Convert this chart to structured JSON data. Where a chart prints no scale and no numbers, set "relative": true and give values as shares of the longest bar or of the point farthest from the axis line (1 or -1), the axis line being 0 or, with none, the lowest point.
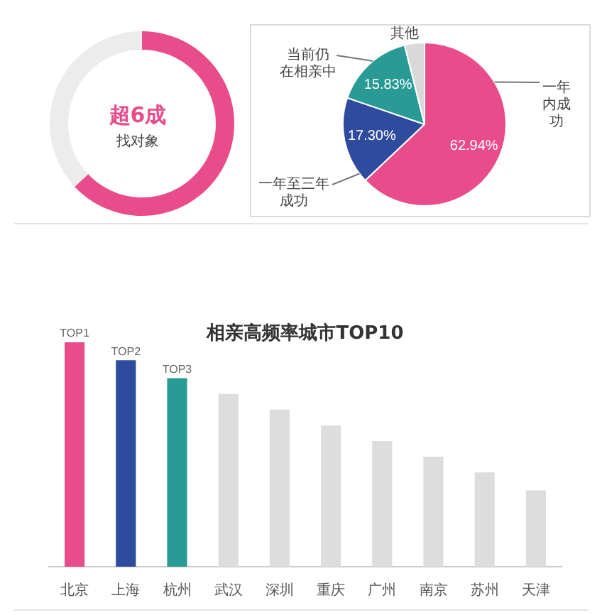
{
  "chart_data": [
    {
      "type": "donut",
      "categories": [
        null,
        null
      ],
      "values": [
        63,
        37
      ],
      "colors": [
        "#e94c8b",
        "#ececec"
      ],
      "annotations": [
        "超6成",
        "找对象"
      ]
    },
    {
      "type": "pie",
      "categories": [
        "一年内成功",
        "一年至三年成功",
        "当前仍在相亲中",
        "其他"
      ],
      "values": [
        62.94,
        17.3,
        15.83,
        3.93
      ],
      "colors": [
        "#e94c8b",
        "#2f4b9e",
        "#2a9a94",
        "#d9d9d9"
      ],
      "value_labels": [
        "62.94%",
        "17.30%",
        "15.83%",
        null
      ]
    },
    {
      "type": "bar",
      "title": "相亲高频率城市TOP10",
      "categories": [
        "北京",
        "上海",
        "杭州",
        "武汉",
        "深圳",
        "重庆",
        "广州",
        "南京",
        "苏州",
        "天津"
      ],
      "values": [
        1,
        0.92,
        0.84,
        0.77,
        0.7,
        0.63,
        0.56,
        0.49,
        0.42,
        0.34
      ],
      "colors": [
        "#e94c8b",
        "#2f4b9e",
        "#2a9a94",
        "#dddddd",
        "#dddddd",
        "#dddddd",
        "#dddddd",
        "#dddddd",
        "#dddddd",
        "#dddddd"
      ],
      "relative": true,
      "annotations": [
        {
          "text": "TOP1",
          "x": "北京",
          "y": 1
        },
        {
          "text": "TOP2",
          "x": "上海",
          "y": 0.92
        },
        {
          "text": "TOP3",
          "x": "杭州",
          "y": 0.84
        }
      ]
    }
  ]
}
